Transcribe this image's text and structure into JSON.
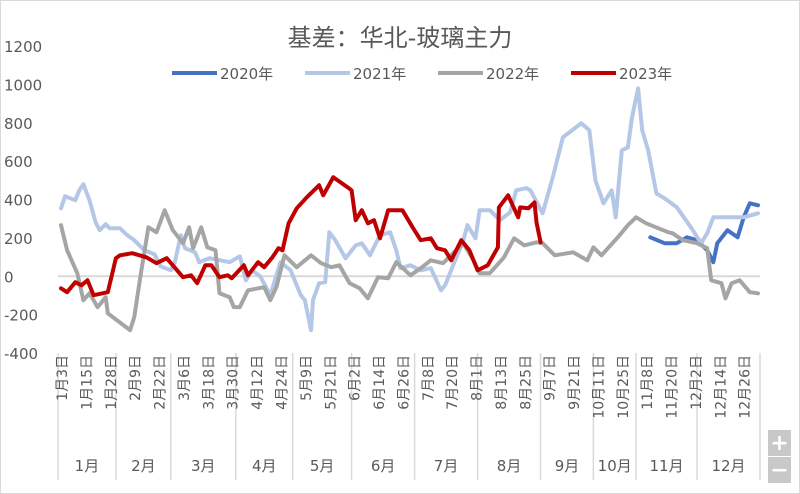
{
  "chart_data": {
    "type": "line",
    "title": "基差：华北-玻璃主力",
    "xlabel": "",
    "ylabel": "",
    "x_unit": "trading-day index from 1月3日",
    "xlim": [
      -1.5,
      344
    ],
    "ylim": [
      -400,
      1200
    ],
    "yticks": [
      1200,
      1000,
      800,
      600,
      400,
      200,
      0,
      -200,
      -400
    ],
    "grid": false,
    "legend_position": "top",
    "tick_labels": [
      "1月3日",
      "1月15日",
      "1月28日",
      "2月9日",
      "2月22日",
      "3月6日",
      "3月18日",
      "3月30日",
      "4月12日",
      "4月24日",
      "5月9日",
      "5月21日",
      "6月2日",
      "6月14日",
      "6月26日",
      "7月8日",
      "7月20日",
      "8月1日",
      "8月13日",
      "8月25日",
      "9月7日",
      "9月21日",
      "10月11日",
      "10月25日",
      "11月8日",
      "11月20日",
      "12月2日",
      "12月14日",
      "12月26日"
    ],
    "tick_step": 12,
    "months": [
      {
        "label": "1月",
        "start": -1.5,
        "end": 27
      },
      {
        "label": "2月",
        "start": 27,
        "end": 54
      },
      {
        "label": "3月",
        "start": 54,
        "end": 86
      },
      {
        "label": "4月",
        "start": 86,
        "end": 114
      },
      {
        "label": "5月",
        "start": 114,
        "end": 143
      },
      {
        "label": "6月",
        "start": 143,
        "end": 174
      },
      {
        "label": "7月",
        "start": 174,
        "end": 205
      },
      {
        "label": "8月",
        "start": 205,
        "end": 236
      },
      {
        "label": "9月",
        "start": 236,
        "end": 262
      },
      {
        "label": "10月",
        "start": 262,
        "end": 283
      },
      {
        "label": "11月",
        "start": 283,
        "end": 313
      },
      {
        "label": "12月",
        "start": 313,
        "end": 344
      }
    ],
    "series": [
      {
        "name": "2020年",
        "color": "#4472C4",
        "points": [
          [
            290,
            203
          ],
          [
            297,
            172
          ],
          [
            303,
            172
          ],
          [
            308,
            203
          ],
          [
            313,
            188
          ],
          [
            318,
            135
          ],
          [
            321,
            73
          ],
          [
            323,
            172
          ],
          [
            328,
            240
          ],
          [
            333,
            203
          ],
          [
            336,
            307
          ],
          [
            339,
            380
          ],
          [
            343,
            370
          ]
        ]
      },
      {
        "name": "2021年",
        "color": "#B4C7E7",
        "points": [
          [
            0,
            354
          ],
          [
            2,
            417
          ],
          [
            7,
            396
          ],
          [
            9,
            448
          ],
          [
            11,
            479
          ],
          [
            14,
            396
          ],
          [
            17,
            281
          ],
          [
            19,
            240
          ],
          [
            22,
            271
          ],
          [
            24,
            250
          ],
          [
            29,
            250
          ],
          [
            32,
            219
          ],
          [
            36,
            188
          ],
          [
            41,
            135
          ],
          [
            46,
            115
          ],
          [
            49,
            52
          ],
          [
            54,
            31
          ],
          [
            56,
            73
          ],
          [
            59,
            214
          ],
          [
            61,
            146
          ],
          [
            66,
            125
          ],
          [
            68,
            73
          ],
          [
            73,
            94
          ],
          [
            83,
            73
          ],
          [
            88,
            104
          ],
          [
            91,
            -21
          ],
          [
            94,
            31
          ],
          [
            98,
            0
          ],
          [
            103,
            -99
          ],
          [
            108,
            73
          ],
          [
            113,
            31
          ],
          [
            118,
            -99
          ],
          [
            120,
            -125
          ],
          [
            123,
            -281
          ],
          [
            124,
            -125
          ],
          [
            127,
            -36
          ],
          [
            130,
            -31
          ],
          [
            132,
            229
          ],
          [
            135,
            188
          ],
          [
            140,
            94
          ],
          [
            145,
            161
          ],
          [
            148,
            172
          ],
          [
            152,
            109
          ],
          [
            157,
            214
          ],
          [
            162,
            229
          ],
          [
            165,
            135
          ],
          [
            167,
            42
          ],
          [
            172,
            57
          ],
          [
            177,
            31
          ],
          [
            182,
            42
          ],
          [
            187,
            -73
          ],
          [
            189,
            -47
          ],
          [
            194,
            83
          ],
          [
            198,
            188
          ],
          [
            200,
            266
          ],
          [
            204,
            198
          ],
          [
            206,
            344
          ],
          [
            211,
            344
          ],
          [
            216,
            292
          ],
          [
            221,
            333
          ],
          [
            224,
            448
          ],
          [
            229,
            459
          ],
          [
            231,
            448
          ],
          [
            237,
            328
          ],
          [
            242,
            516
          ],
          [
            247,
            724
          ],
          [
            256,
            797
          ],
          [
            260,
            761
          ],
          [
            263,
            500
          ],
          [
            267,
            380
          ],
          [
            271,
            448
          ],
          [
            273,
            307
          ],
          [
            276,
            656
          ],
          [
            279,
            672
          ],
          [
            281,
            828
          ],
          [
            284,
            979
          ],
          [
            286,
            761
          ],
          [
            289,
            656
          ],
          [
            293,
            432
          ],
          [
            297,
            406
          ],
          [
            303,
            360
          ],
          [
            310,
            255
          ],
          [
            315,
            172
          ],
          [
            318,
            224
          ],
          [
            321,
            307
          ],
          [
            330,
            307
          ],
          [
            336,
            307
          ],
          [
            343,
            328
          ]
        ]
      },
      {
        "name": "2022年",
        "color": "#A5A5A5",
        "points": [
          [
            0,
            266
          ],
          [
            3,
            135
          ],
          [
            8,
            16
          ],
          [
            11,
            -125
          ],
          [
            14,
            -89
          ],
          [
            18,
            -161
          ],
          [
            22,
            -109
          ],
          [
            23,
            -193
          ],
          [
            34,
            -281
          ],
          [
            36,
            -214
          ],
          [
            39,
            -5
          ],
          [
            43,
            255
          ],
          [
            47,
            229
          ],
          [
            51,
            344
          ],
          [
            55,
            240
          ],
          [
            60,
            172
          ],
          [
            63,
            255
          ],
          [
            65,
            146
          ],
          [
            69,
            255
          ],
          [
            72,
            151
          ],
          [
            76,
            135
          ],
          [
            78,
            -89
          ],
          [
            83,
            -109
          ],
          [
            85,
            -161
          ],
          [
            88,
            -161
          ],
          [
            92,
            -73
          ],
          [
            97,
            -63
          ],
          [
            100,
            -57
          ],
          [
            103,
            -125
          ],
          [
            106,
            -57
          ],
          [
            110,
            109
          ],
          [
            116,
            47
          ],
          [
            123,
            109
          ],
          [
            128,
            68
          ],
          [
            133,
            47
          ],
          [
            137,
            57
          ],
          [
            142,
            -36
          ],
          [
            147,
            -63
          ],
          [
            151,
            -115
          ],
          [
            156,
            -5
          ],
          [
            161,
            -10
          ],
          [
            165,
            73
          ],
          [
            172,
            5
          ],
          [
            177,
            42
          ],
          [
            182,
            83
          ],
          [
            188,
            68
          ],
          [
            193,
            120
          ],
          [
            198,
            172
          ],
          [
            203,
            83
          ],
          [
            206,
            16
          ],
          [
            211,
            16
          ],
          [
            218,
            99
          ],
          [
            223,
            198
          ],
          [
            228,
            161
          ],
          [
            234,
            177
          ],
          [
            237,
            172
          ],
          [
            243,
            109
          ],
          [
            252,
            125
          ],
          [
            259,
            83
          ],
          [
            262,
            151
          ],
          [
            266,
            109
          ],
          [
            274,
            203
          ],
          [
            279,
            266
          ],
          [
            283,
            307
          ],
          [
            288,
            276
          ],
          [
            294,
            250
          ],
          [
            299,
            229
          ],
          [
            301,
            224
          ],
          [
            306,
            188
          ],
          [
            313,
            172
          ],
          [
            318,
            146
          ],
          [
            320,
            -21
          ],
          [
            325,
            -36
          ],
          [
            327,
            -115
          ],
          [
            330,
            -36
          ],
          [
            334,
            -21
          ],
          [
            339,
            -83
          ],
          [
            343,
            -89
          ]
        ]
      },
      {
        "name": "2023年",
        "color": "#C00000",
        "points": [
          [
            0,
            -63
          ],
          [
            3,
            -83
          ],
          [
            7,
            -31
          ],
          [
            10,
            -47
          ],
          [
            13,
            -21
          ],
          [
            16,
            -99
          ],
          [
            23,
            -83
          ],
          [
            27,
            94
          ],
          [
            29,
            109
          ],
          [
            35,
            120
          ],
          [
            42,
            99
          ],
          [
            47,
            68
          ],
          [
            52,
            94
          ],
          [
            60,
            -5
          ],
          [
            64,
            5
          ],
          [
            67,
            -36
          ],
          [
            71,
            57
          ],
          [
            74,
            57
          ],
          [
            78,
            -5
          ],
          [
            82,
            5
          ],
          [
            84,
            -10
          ],
          [
            90,
            57
          ],
          [
            92,
            5
          ],
          [
            97,
            73
          ],
          [
            100,
            47
          ],
          [
            104,
            99
          ],
          [
            107,
            146
          ],
          [
            109,
            135
          ],
          [
            112,
            276
          ],
          [
            116,
            354
          ],
          [
            121,
            412
          ],
          [
            127,
            474
          ],
          [
            129,
            422
          ],
          [
            134,
            516
          ],
          [
            141,
            464
          ],
          [
            143,
            448
          ],
          [
            145,
            292
          ],
          [
            148,
            344
          ],
          [
            151,
            276
          ],
          [
            154,
            292
          ],
          [
            157,
            198
          ],
          [
            161,
            344
          ],
          [
            168,
            344
          ],
          [
            173,
            255
          ],
          [
            177,
            188
          ],
          [
            182,
            198
          ],
          [
            185,
            146
          ],
          [
            189,
            135
          ],
          [
            192,
            83
          ],
          [
            197,
            188
          ],
          [
            201,
            135
          ],
          [
            205,
            31
          ],
          [
            210,
            57
          ],
          [
            215,
            151
          ],
          [
            215.5,
            359
          ],
          [
            220,
            422
          ],
          [
            225,
            307
          ],
          [
            226,
            359
          ],
          [
            230,
            354
          ],
          [
            233,
            385
          ],
          [
            234,
            281
          ],
          [
            236,
            177
          ]
        ]
      }
    ]
  },
  "controls": {
    "zoom_in": "+",
    "zoom_out": "−"
  }
}
